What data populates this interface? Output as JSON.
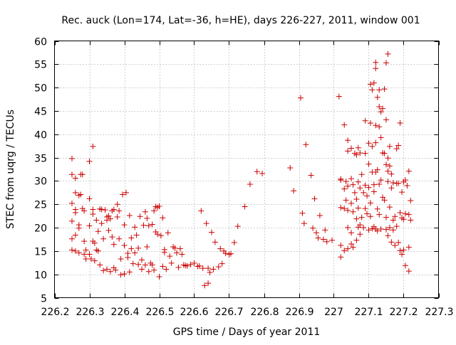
{
  "chart_data": {
    "type": "scatter",
    "title": "Rec. auck (Lon=174, Lat=-36, h=HE), days 226-227, 2011, window 001",
    "xlabel": "GPS time / Days of year 2011",
    "ylabel": "STEC from uqrg / TECUs",
    "xlim": [
      226.2,
      227.3
    ],
    "ylim": [
      5,
      60
    ],
    "xticks": [
      226.2,
      226.3,
      226.4,
      226.5,
      226.6,
      226.7,
      226.8,
      226.9,
      227.0,
      227.1,
      227.2,
      227.3
    ],
    "xtick_labels": [
      "226.2",
      "226.3",
      "226.4",
      "226.5",
      "226.6",
      "226.7",
      "226.8",
      "226.9",
      "227",
      "227.1",
      "227.2",
      "227.3"
    ],
    "yticks": [
      5,
      10,
      15,
      20,
      25,
      30,
      35,
      40,
      45,
      50,
      55,
      60
    ],
    "ytick_labels": [
      "5",
      "10",
      "15",
      "20",
      "25",
      "30",
      "35",
      "40",
      "45",
      "50",
      "55",
      "60"
    ],
    "grid": true,
    "marker": "+",
    "color": "#cc0000",
    "points": [
      [
        226.25,
        34.8
      ],
      [
        226.25,
        31.4
      ],
      [
        226.25,
        25.2
      ],
      [
        226.25,
        21.4
      ],
      [
        226.25,
        17.6
      ],
      [
        226.25,
        15.2
      ],
      [
        226.26,
        30.6
      ],
      [
        226.26,
        27.5
      ],
      [
        226.26,
        23.9
      ],
      [
        226.26,
        23.2
      ],
      [
        226.26,
        18.4
      ],
      [
        226.26,
        15.0
      ],
      [
        226.27,
        26.9
      ],
      [
        226.27,
        20.6
      ],
      [
        226.27,
        19.9
      ],
      [
        226.27,
        14.6
      ],
      [
        226.275,
        27.1
      ],
      [
        226.275,
        31.4
      ],
      [
        226.28,
        31.4
      ],
      [
        226.28,
        24.1
      ],
      [
        226.285,
        23.6
      ],
      [
        226.285,
        17.1
      ],
      [
        226.285,
        14.3
      ],
      [
        226.29,
        15.2
      ],
      [
        226.29,
        13.3
      ],
      [
        226.3,
        34.2
      ],
      [
        226.3,
        26.2
      ],
      [
        226.3,
        20.4
      ],
      [
        226.3,
        14.3
      ],
      [
        226.305,
        13.3
      ],
      [
        226.31,
        37.4
      ],
      [
        226.31,
        23.9
      ],
      [
        226.31,
        22.9
      ],
      [
        226.31,
        17.1
      ],
      [
        226.315,
        16.7
      ],
      [
        226.315,
        12.9
      ],
      [
        226.32,
        21.6
      ],
      [
        226.32,
        15.2
      ],
      [
        226.325,
        19.2
      ],
      [
        226.325,
        15.0
      ],
      [
        226.33,
        24.0
      ],
      [
        226.33,
        12.0
      ],
      [
        226.335,
        23.9
      ],
      [
        226.335,
        20.9
      ],
      [
        226.34,
        17.6
      ],
      [
        226.34,
        10.8
      ],
      [
        226.345,
        23.8
      ],
      [
        226.35,
        22.3
      ],
      [
        226.35,
        21.6
      ],
      [
        226.35,
        11.1
      ],
      [
        226.355,
        22.5
      ],
      [
        226.355,
        19.4
      ],
      [
        226.36,
        21.9
      ],
      [
        226.36,
        10.6
      ],
      [
        226.365,
        23.6
      ],
      [
        226.365,
        18.0
      ],
      [
        226.37,
        23.9
      ],
      [
        226.37,
        16.4
      ],
      [
        226.37,
        11.4
      ],
      [
        226.375,
        10.9
      ],
      [
        226.38,
        25.0
      ],
      [
        226.38,
        22.3
      ],
      [
        226.385,
        23.6
      ],
      [
        226.385,
        17.6
      ],
      [
        226.39,
        13.3
      ],
      [
        226.39,
        9.9
      ],
      [
        226.395,
        27.1
      ],
      [
        226.4,
        20.6
      ],
      [
        226.4,
        16.2
      ],
      [
        226.4,
        10.1
      ],
      [
        226.405,
        27.5
      ],
      [
        226.41,
        14.5
      ],
      [
        226.41,
        13.6
      ],
      [
        226.415,
        22.6
      ],
      [
        226.415,
        10.5
      ],
      [
        226.42,
        17.8
      ],
      [
        226.42,
        15.5
      ],
      [
        226.425,
        12.3
      ],
      [
        226.43,
        20.1
      ],
      [
        226.43,
        14.6
      ],
      [
        226.435,
        18.4
      ],
      [
        226.44,
        15.6
      ],
      [
        226.44,
        12.1
      ],
      [
        226.445,
        22.4
      ],
      [
        226.45,
        13.1
      ],
      [
        226.45,
        11.1
      ],
      [
        226.455,
        20.5
      ],
      [
        226.46,
        23.4
      ],
      [
        226.46,
        12.0
      ],
      [
        226.465,
        22.0
      ],
      [
        226.465,
        15.9
      ],
      [
        226.47,
        20.4
      ],
      [
        226.47,
        10.6
      ],
      [
        226.475,
        12.4
      ],
      [
        226.48,
        20.7
      ],
      [
        226.48,
        12.0
      ],
      [
        226.485,
        23.6
      ],
      [
        226.485,
        10.9
      ],
      [
        226.49,
        24.5
      ],
      [
        226.49,
        19.1
      ],
      [
        226.495,
        24.3
      ],
      [
        226.495,
        18.6
      ],
      [
        226.5,
        24.6
      ],
      [
        226.5,
        9.5
      ],
      [
        226.505,
        18.3
      ],
      [
        226.51,
        22.1
      ],
      [
        226.51,
        11.7
      ],
      [
        226.515,
        15.3
      ],
      [
        226.515,
        14.7
      ],
      [
        226.52,
        11.1
      ],
      [
        226.525,
        18.9
      ],
      [
        226.53,
        13.9
      ],
      [
        226.535,
        12.4
      ],
      [
        226.54,
        15.9
      ],
      [
        226.545,
        15.6
      ],
      [
        226.55,
        14.6
      ],
      [
        226.555,
        11.5
      ],
      [
        226.56,
        15.5
      ],
      [
        226.565,
        14.3
      ],
      [
        226.57,
        12.0
      ],
      [
        226.575,
        11.9
      ],
      [
        226.58,
        11.8
      ],
      [
        226.59,
        12.1
      ],
      [
        226.6,
        12.4
      ],
      [
        226.61,
        11.7
      ],
      [
        226.615,
        11.8
      ],
      [
        226.62,
        23.6
      ],
      [
        226.625,
        11.3
      ],
      [
        226.63,
        7.6
      ],
      [
        226.635,
        20.9
      ],
      [
        226.64,
        11.3
      ],
      [
        226.64,
        8.1
      ],
      [
        226.645,
        10.4
      ],
      [
        226.65,
        19.0
      ],
      [
        226.655,
        11.1
      ],
      [
        226.66,
        16.9
      ],
      [
        226.67,
        11.6
      ],
      [
        226.675,
        15.5
      ],
      [
        226.68,
        12.3
      ],
      [
        226.685,
        15.0
      ],
      [
        226.69,
        14.5
      ],
      [
        226.7,
        14.3
      ],
      [
        226.705,
        14.4
      ],
      [
        226.715,
        16.8
      ],
      [
        226.725,
        20.3
      ],
      [
        226.745,
        24.5
      ],
      [
        226.76,
        29.3
      ],
      [
        226.78,
        32.0
      ],
      [
        226.795,
        31.6
      ],
      [
        226.875,
        32.8
      ],
      [
        226.885,
        27.9
      ],
      [
        226.905,
        47.8
      ],
      [
        226.91,
        23.1
      ],
      [
        226.915,
        20.9
      ],
      [
        226.92,
        37.8
      ],
      [
        226.935,
        31.2
      ],
      [
        226.94,
        19.9
      ],
      [
        226.945,
        26.2
      ],
      [
        226.95,
        18.9
      ],
      [
        226.955,
        17.8
      ],
      [
        226.96,
        22.6
      ],
      [
        226.97,
        17.5
      ],
      [
        226.975,
        19.5
      ],
      [
        226.98,
        17.0
      ],
      [
        226.995,
        17.3
      ],
      [
        227.015,
        48.1
      ],
      [
        227.02,
        30.4
      ],
      [
        227.02,
        30.2
      ],
      [
        227.02,
        24.3
      ],
      [
        227.02,
        16.2
      ],
      [
        227.02,
        13.7
      ],
      [
        227.03,
        42.0
      ],
      [
        227.03,
        28.3
      ],
      [
        227.03,
        24.1
      ],
      [
        227.03,
        15.1
      ],
      [
        227.035,
        29.9
      ],
      [
        227.035,
        25.9
      ],
      [
        227.04,
        38.7
      ],
      [
        227.04,
        36.4
      ],
      [
        227.04,
        28.9
      ],
      [
        227.04,
        23.7
      ],
      [
        227.04,
        20.0
      ],
      [
        227.04,
        15.5
      ],
      [
        227.05,
        37.0
      ],
      [
        227.05,
        30.5
      ],
      [
        227.05,
        25.2
      ],
      [
        227.05,
        18.9
      ],
      [
        227.05,
        16.5
      ],
      [
        227.055,
        29.2
      ],
      [
        227.055,
        23.4
      ],
      [
        227.055,
        15.8
      ],
      [
        227.06,
        35.9
      ],
      [
        227.06,
        27.5
      ],
      [
        227.065,
        35.6
      ],
      [
        227.065,
        26.1
      ],
      [
        227.065,
        21.9
      ],
      [
        227.065,
        17.3
      ],
      [
        227.07,
        37.1
      ],
      [
        227.07,
        29.8
      ],
      [
        227.07,
        24.2
      ],
      [
        227.07,
        20.1
      ],
      [
        227.075,
        36.0
      ],
      [
        227.075,
        28.5
      ],
      [
        227.075,
        20.6
      ],
      [
        227.075,
        18.6
      ],
      [
        227.08,
        31.4
      ],
      [
        227.08,
        22.2
      ],
      [
        227.085,
        27.5
      ],
      [
        227.085,
        20.0
      ],
      [
        227.09,
        42.9
      ],
      [
        227.09,
        35.9
      ],
      [
        227.09,
        29.1
      ],
      [
        227.09,
        24.1
      ],
      [
        227.095,
        26.8
      ],
      [
        227.095,
        23.0
      ],
      [
        227.1,
        38.1
      ],
      [
        227.1,
        33.6
      ],
      [
        227.1,
        28.6
      ],
      [
        227.1,
        19.5
      ],
      [
        227.105,
        50.7
      ],
      [
        227.105,
        42.4
      ],
      [
        227.105,
        25.3
      ],
      [
        227.105,
        22.4
      ],
      [
        227.11,
        49.5
      ],
      [
        227.11,
        37.4
      ],
      [
        227.11,
        31.9
      ],
      [
        227.11,
        19.8
      ],
      [
        227.115,
        51.0
      ],
      [
        227.115,
        29.2
      ],
      [
        227.115,
        27.7
      ],
      [
        227.115,
        20.2
      ],
      [
        227.12,
        55.4
      ],
      [
        227.12,
        54.1
      ],
      [
        227.12,
        41.9
      ],
      [
        227.12,
        38.2
      ],
      [
        227.12,
        31.9
      ],
      [
        227.12,
        19.7
      ],
      [
        227.125,
        47.9
      ],
      [
        227.125,
        32.4
      ],
      [
        227.125,
        24.0
      ],
      [
        227.125,
        19.3
      ],
      [
        227.13,
        49.5
      ],
      [
        227.13,
        45.9
      ],
      [
        227.13,
        41.6
      ],
      [
        227.13,
        29.3
      ],
      [
        227.13,
        22.8
      ],
      [
        227.135,
        44.8
      ],
      [
        227.135,
        39.3
      ],
      [
        227.135,
        30.2
      ],
      [
        227.135,
        19.7
      ],
      [
        227.14,
        45.5
      ],
      [
        227.14,
        36.0
      ],
      [
        227.14,
        26.5
      ],
      [
        227.145,
        49.7
      ],
      [
        227.145,
        35.9
      ],
      [
        227.145,
        25.9
      ],
      [
        227.15,
        55.3
      ],
      [
        227.15,
        43.1
      ],
      [
        227.15,
        33.5
      ],
      [
        227.15,
        22.2
      ],
      [
        227.15,
        19.6
      ],
      [
        227.155,
        57.2
      ],
      [
        227.155,
        34.9
      ],
      [
        227.155,
        32.1
      ],
      [
        227.155,
        29.9
      ],
      [
        227.155,
        18.3
      ],
      [
        227.16,
        37.4
      ],
      [
        227.16,
        33.2
      ],
      [
        227.16,
        24.4
      ],
      [
        227.16,
        20.0
      ],
      [
        227.165,
        31.5
      ],
      [
        227.165,
        28.5
      ],
      [
        227.165,
        16.9
      ],
      [
        227.17,
        29.6
      ],
      [
        227.17,
        21.6
      ],
      [
        227.17,
        19.5
      ],
      [
        227.175,
        22.4
      ],
      [
        227.175,
        16.2
      ],
      [
        227.18,
        36.9
      ],
      [
        227.18,
        29.5
      ],
      [
        227.18,
        20.3
      ],
      [
        227.185,
        37.6
      ],
      [
        227.185,
        29.5
      ],
      [
        227.185,
        16.8
      ],
      [
        227.19,
        42.4
      ],
      [
        227.19,
        23.2
      ],
      [
        227.19,
        15.1
      ],
      [
        227.195,
        27.6
      ],
      [
        227.195,
        22.1
      ],
      [
        227.195,
        14.3
      ],
      [
        227.2,
        29.8
      ],
      [
        227.2,
        21.8
      ],
      [
        227.2,
        15.2
      ],
      [
        227.205,
        30.2
      ],
      [
        227.205,
        23.0
      ],
      [
        227.205,
        11.9
      ],
      [
        227.21,
        29.0
      ],
      [
        227.215,
        32.1
      ],
      [
        227.215,
        22.8
      ],
      [
        227.215,
        15.8
      ],
      [
        227.215,
        10.7
      ],
      [
        227.22,
        25.8
      ],
      [
        227.22,
        21.6
      ]
    ]
  }
}
